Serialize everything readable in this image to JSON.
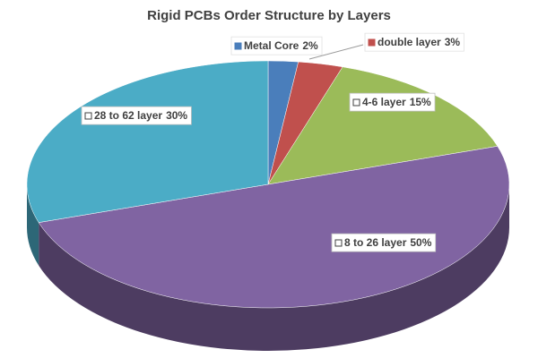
{
  "chart_data": {
    "type": "pie",
    "title": "Rigid PCBs Order Structure by Layers",
    "categories": [
      "Metal Core",
      "double layer",
      "4-6 layer",
      "8 to 26 layer",
      "28 to 62 layer"
    ],
    "values": [
      2,
      3,
      15,
      50,
      30
    ],
    "value_labels": [
      "2%",
      "3%",
      "15%",
      "50%",
      "30%"
    ],
    "colors": [
      "#4a7ebb",
      "#c0504d",
      "#9bbb59",
      "#8064a2",
      "#4bacc6"
    ]
  }
}
